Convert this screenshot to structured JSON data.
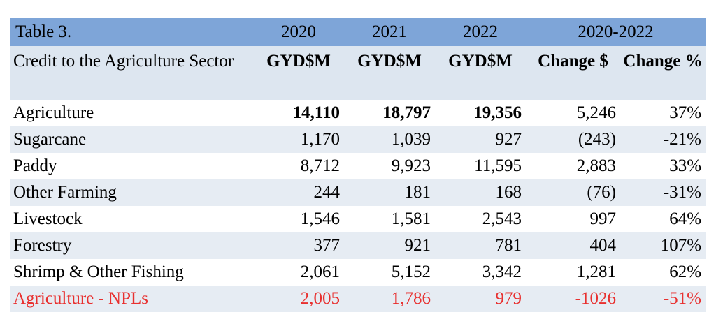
{
  "table": {
    "caption": "Table 3.",
    "years": [
      "2020",
      "2021",
      "2022"
    ],
    "period": "2020-2022",
    "row_header_label": "Credit to the Agriculture Sector",
    "unit_headers": [
      "GYD$M",
      "GYD$M",
      "GYD$M",
      "Change $",
      "Change %"
    ],
    "rows": [
      {
        "label": "Agriculture",
        "values": [
          "14,110",
          "18,797",
          "19,356",
          "5,246",
          "37%"
        ]
      },
      {
        "label": "Sugarcane",
        "values": [
          "1,170",
          "1,039",
          "927",
          "(243)",
          "-21%"
        ]
      },
      {
        "label": "Paddy",
        "values": [
          "8,712",
          "9,923",
          "11,595",
          "2,883",
          "33%"
        ]
      },
      {
        "label": "Other Farming",
        "values": [
          "244",
          "181",
          "168",
          "(76)",
          "-31%"
        ]
      },
      {
        "label": "Livestock",
        "values": [
          "1,546",
          "1,581",
          "2,543",
          "997",
          "64%"
        ]
      },
      {
        "label": "Forestry",
        "values": [
          "377",
          "921",
          "781",
          "404",
          "107%"
        ]
      },
      {
        "label": "Shrimp & Other Fishing",
        "values": [
          "2,061",
          "5,152",
          "3,342",
          "1,281",
          "62%"
        ]
      },
      {
        "label": "Agriculture - NPLs",
        "values": [
          "2,005",
          "1,786",
          "979",
          "-1026",
          "-51%"
        ]
      }
    ]
  },
  "colors": {
    "header_blue": "#7ea5d8",
    "row_tint": "#e6ecf3",
    "npl_red": "#e8302f"
  }
}
